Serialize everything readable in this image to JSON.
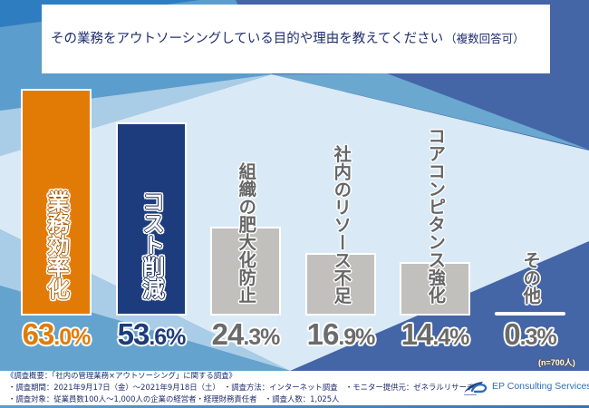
{
  "chart_data": {
    "type": "bar",
    "title": "その業務をアウトソーシングしている目的や理由を教えてください",
    "subtitle": "（複数回答可）",
    "xlabel": "",
    "ylabel": "",
    "categories": [
      "業務効率化",
      "コスト削減",
      "組織の肥大化防止",
      "社内のリソース不足",
      "コアコンピタンス強化",
      "その他"
    ],
    "values": [
      63.0,
      53.6,
      24.3,
      16.9,
      14.4,
      0.3
    ],
    "unit": "%",
    "data_labels": [
      "63.0%",
      "53.6%",
      "24.3%",
      "16.9%",
      "14.4%",
      "0.3%"
    ],
    "bar_colors": [
      "#e27b06",
      "#1d3c7d",
      "#c2c0bd",
      "#c2c0bd",
      "#c2c0bd",
      "#d2d2d2"
    ],
    "label_colors": [
      "#e27b06",
      "#1d3c7d",
      "#6b6b6b",
      "#6b6b6b",
      "#6b6b6b",
      "#6b6b6b"
    ],
    "note": "(n=700人)",
    "grid": false,
    "legend": "none"
  },
  "footer": {
    "survey_title": "《調査概要：「社内の管理業務×アウトソーシング」に関する調査》",
    "line2": "・調査期間：2021年9月17日（金）～2021年9月18日（土）　・調査方法：インターネット調査　・モニター提供元：ゼネラルリサーチ",
    "line3": "・調査対象：従業員数100人～1,000人の企業の経営者・経理財務責任者　・調査人数：1,025人"
  },
  "brand": {
    "name": "EP Consulting Services",
    "color": "#2e6db4"
  }
}
